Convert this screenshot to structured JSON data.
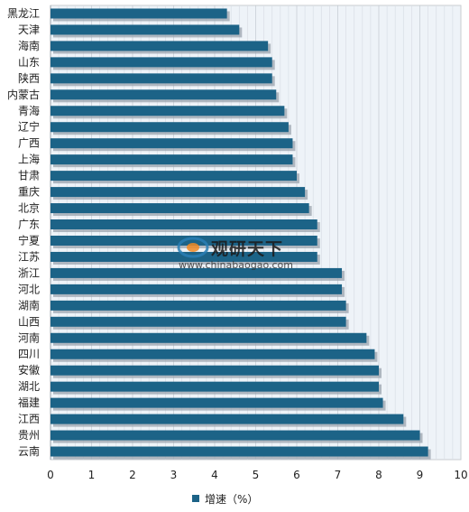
{
  "chart_data": {
    "type": "bar",
    "orientation": "horizontal",
    "categories": [
      "黑龙江",
      "天津",
      "海南",
      "山东",
      "陕西",
      "内蒙古",
      "青海",
      "辽宁",
      "广西",
      "上海",
      "甘肃",
      "重庆",
      "北京",
      "广东",
      "宁夏",
      "江苏",
      "浙江",
      "河北",
      "湖南",
      "山西",
      "河南",
      "四川",
      "安徽",
      "湖北",
      "福建",
      "江西",
      "贵州",
      "云南"
    ],
    "series": [
      {
        "name": "增速（%）",
        "values": [
          4.3,
          4.6,
          5.3,
          5.4,
          5.4,
          5.5,
          5.7,
          5.8,
          5.9,
          5.9,
          6.0,
          6.2,
          6.3,
          6.5,
          6.5,
          6.5,
          7.1,
          7.1,
          7.2,
          7.2,
          7.7,
          7.9,
          8.0,
          8.0,
          8.1,
          8.6,
          9.0,
          9.2
        ]
      }
    ],
    "xlim": [
      0,
      10
    ],
    "x_ticks": [
      "0",
      "1",
      "2",
      "3",
      "4",
      "5",
      "6",
      "7",
      "8",
      "9",
      "10"
    ],
    "grid": true,
    "legend_position": "bottom-center",
    "bar_color": "#1c6387"
  },
  "legend": {
    "label": "增速（%）"
  },
  "watermark": {
    "title": "观研天下",
    "url": "www.chinabaogao.com"
  }
}
